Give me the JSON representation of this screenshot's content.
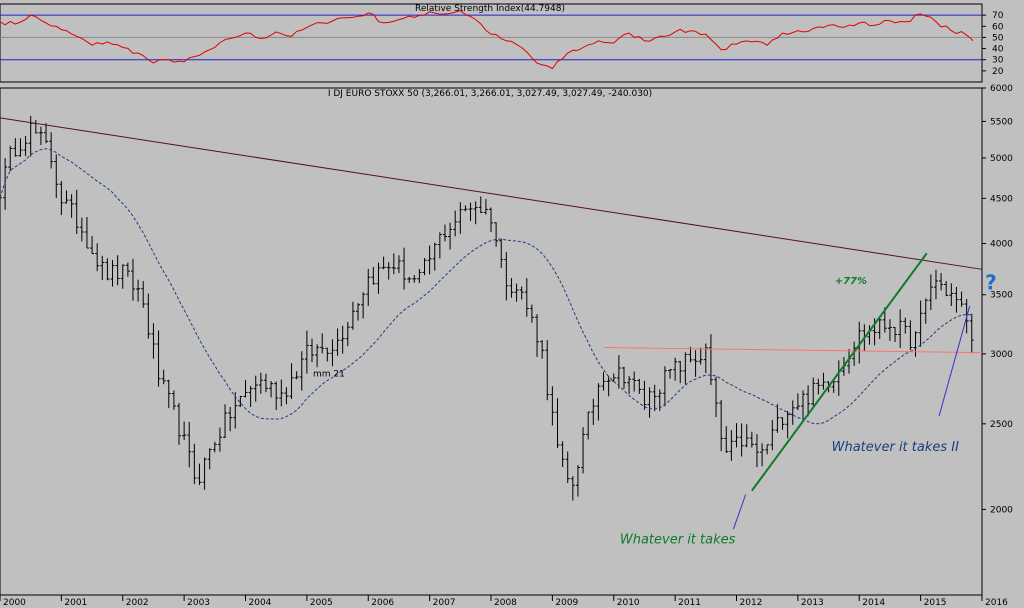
{
  "chart_data": [
    {
      "type": "line",
      "title": "Relative Strength Index(44.7948)",
      "ylim": [
        10,
        80
      ],
      "y_ticks": [
        20,
        30,
        40,
        50,
        60,
        70
      ],
      "reference_lines": [
        30,
        50,
        70
      ],
      "series": [
        {
          "color": "#e00000",
          "x": [
            2000.0,
            2000.25,
            2000.5,
            2000.75,
            2001.0,
            2001.25,
            2001.5,
            2001.75,
            2002.0,
            2002.25,
            2002.5,
            2002.75,
            2003.0,
            2003.25,
            2003.5,
            2003.75,
            2004.0,
            2004.25,
            2004.5,
            2004.75,
            2005.0,
            2005.25,
            2005.5,
            2005.75,
            2006.0,
            2006.25,
            2006.5,
            2006.75,
            2007.0,
            2007.25,
            2007.5,
            2007.75,
            2008.0,
            2008.25,
            2008.5,
            2008.75,
            2009.0,
            2009.25,
            2009.5,
            2009.75,
            2010.0,
            2010.25,
            2010.5,
            2010.75,
            2011.0,
            2011.25,
            2011.5,
            2011.75,
            2012.0,
            2012.25,
            2012.5,
            2012.75,
            2013.0,
            2013.25,
            2013.5,
            2013.75,
            2014.0,
            2014.25,
            2014.5,
            2014.75,
            2015.0,
            2015.25,
            2015.5,
            2015.75,
            2015.85
          ],
          "values": [
            64,
            62,
            70,
            63,
            57,
            51,
            43,
            46,
            41,
            36,
            27,
            30,
            28,
            34,
            41,
            49,
            54,
            49,
            55,
            51,
            59,
            63,
            67,
            68,
            72,
            63,
            66,
            68,
            73,
            71,
            74,
            66,
            53,
            47,
            41,
            27,
            22,
            36,
            41,
            47,
            45,
            54,
            47,
            51,
            55,
            56,
            53,
            39,
            44,
            46,
            43,
            54,
            56,
            58,
            61,
            59,
            63,
            61,
            65,
            64,
            71,
            64,
            56,
            52,
            47
          ]
        }
      ]
    },
    {
      "type": "bar",
      "subtype": "ohlc",
      "title": "I DJ EURO STOXX 50 (3,266.01, 3,266.01, 3,027.49, 3,027.49, -240.030)",
      "scale": "log",
      "ylim": [
        1600,
        6000
      ],
      "y_ticks": [
        2000,
        2500,
        3000,
        3500,
        4000,
        4500,
        5000,
        5500,
        6000
      ],
      "x_ticks": [
        "2000",
        "2001",
        "2002",
        "2003",
        "2004",
        "2005",
        "2006",
        "2007",
        "2008",
        "2009",
        "2010",
        "2011",
        "2012",
        "2013",
        "2014",
        "2015",
        "2016"
      ],
      "xlim": [
        2000.0,
        2016.0
      ],
      "anchors": {
        "x": [
          2000.0,
          2000.2,
          2000.5,
          2000.8,
          2001.0,
          2001.3,
          2001.7,
          2002.0,
          2002.3,
          2002.6,
          2002.9,
          2003.2,
          2003.5,
          2003.8,
          2004.2,
          2004.6,
          2005.0,
          2005.5,
          2006.0,
          2006.4,
          2006.8,
          2007.2,
          2007.7,
          2008.0,
          2008.2,
          2008.5,
          2008.8,
          2009.1,
          2009.3,
          2009.5,
          2009.8,
          2010.2,
          2010.5,
          2010.9,
          2011.2,
          2011.5,
          2011.8,
          2012.1,
          2012.4,
          2012.8,
          2013.2,
          2013.6,
          2014.0,
          2014.5,
          2014.9,
          2015.2,
          2015.5,
          2015.75,
          2015.85
        ],
        "close": [
          4600,
          5100,
          5400,
          5100,
          4500,
          4200,
          3700,
          3700,
          3500,
          2800,
          2500,
          2150,
          2400,
          2600,
          2800,
          2700,
          3000,
          3100,
          3650,
          3800,
          3600,
          4100,
          4450,
          4300,
          3700,
          3500,
          3100,
          2300,
          2100,
          2400,
          2850,
          2850,
          2650,
          2850,
          2950,
          3000,
          2300,
          2400,
          2300,
          2600,
          2700,
          2850,
          3150,
          3250,
          3100,
          3650,
          3500,
          3300,
          3030
        ]
      },
      "moving_average": {
        "label": "mm 21",
        "color": "#1a3d80"
      },
      "trend_lines": [
        {
          "label": "",
          "color": "#5a1010",
          "x": [
            2000.0,
            2016.0
          ],
          "y": [
            5550,
            3740
          ]
        },
        {
          "label": "",
          "color": "#ff7070",
          "x": [
            2009.85,
            2016.0
          ],
          "y": [
            3050,
            3010
          ]
        },
        {
          "label": "+77%",
          "color": "#0f7a2a",
          "x": [
            2012.25,
            2015.1
          ],
          "y": [
            2100,
            3900
          ]
        },
        {
          "label": "",
          "color": "#3030cc",
          "x": [
            2015.3,
            2015.8
          ],
          "y": [
            2550,
            3400
          ]
        }
      ],
      "annotations": [
        {
          "text": "+77%",
          "color": "#0f7a2a"
        },
        {
          "text": "Whatever it takes",
          "color": "#0f7a2a"
        },
        {
          "text": "Whatever it takes II",
          "color": "#1a3d80"
        },
        {
          "text": "?",
          "color": "#1e6fc8"
        }
      ],
      "arrow_color": "#3030cc"
    }
  ]
}
